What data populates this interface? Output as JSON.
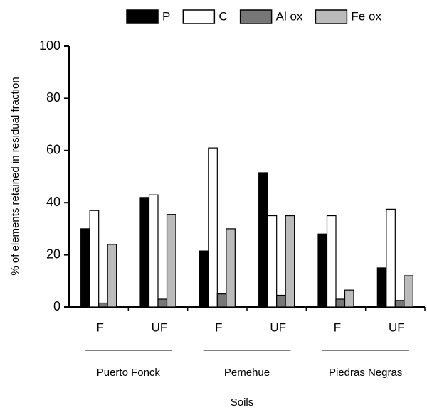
{
  "chart_data": {
    "type": "bar",
    "y_label": "% of elements retained in residual fraction",
    "x_label": "Soils",
    "categories": [
      "F",
      "UF",
      "F",
      "UF",
      "F",
      "UF"
    ],
    "groups": [
      "Puerto Fonck",
      "Pemehue",
      "Piedras Negras"
    ],
    "series": [
      {
        "name": "P",
        "color": "#000000",
        "values": [
          30,
          42,
          21.5,
          51.5,
          28,
          15
        ]
      },
      {
        "name": "C",
        "color": "#ffffff",
        "values": [
          37,
          43,
          61,
          35,
          35,
          37.5
        ]
      },
      {
        "name": "Al ox",
        "color": "#777777",
        "values": [
          1.5,
          3,
          5,
          4.5,
          3,
          2.5
        ]
      },
      {
        "name": "Fe ox",
        "color": "#bbbbbb",
        "values": [
          24,
          35.5,
          30,
          35,
          6.5,
          12
        ]
      }
    ],
    "ylim": [
      0,
      100
    ],
    "yticks": [
      0,
      20,
      40,
      60,
      80,
      100
    ],
    "grid": false
  }
}
